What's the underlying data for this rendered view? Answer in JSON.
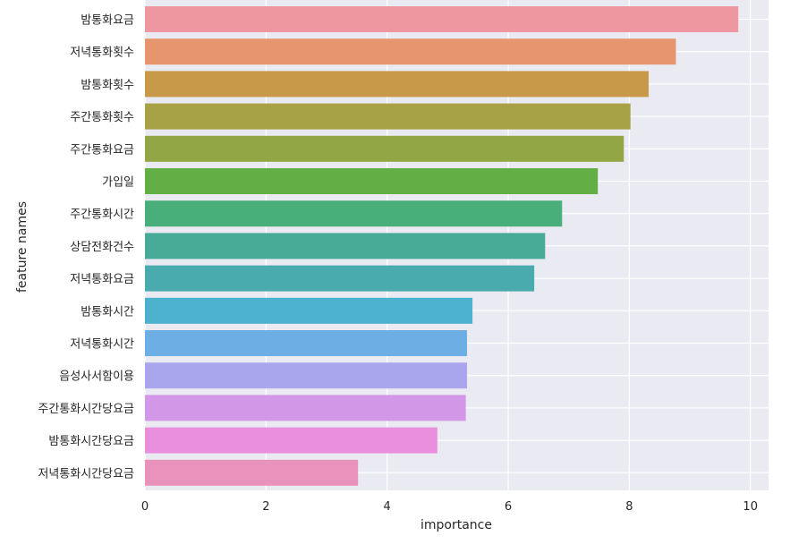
{
  "chart_data": {
    "type": "bar",
    "orientation": "horizontal",
    "xlabel": "importance",
    "ylabel": "feature names",
    "xlim": [
      0,
      10.3
    ],
    "xticks": [
      0,
      2,
      4,
      6,
      8,
      10
    ],
    "grid": true,
    "legend": "none",
    "background_color": "#eaeaf2",
    "categories": [
      "밤통화요금",
      "저녁통화횟수",
      "밤통화횟수",
      "주간통화횟수",
      "주간통화요금",
      "가입일",
      "주간통화시간",
      "상담전화건수",
      "저녁통화요금",
      "밤통화시간",
      "저녁통화시간",
      "음성사서함이용",
      "주간통화시간당요금",
      "밤통화시간당요금",
      "저녁통화시간당요금"
    ],
    "values": [
      9.8,
      8.77,
      8.32,
      8.02,
      7.91,
      7.48,
      6.89,
      6.61,
      6.43,
      5.41,
      5.32,
      5.32,
      5.3,
      4.83,
      3.52
    ],
    "colors": [
      "#ef97a1",
      "#e7956e",
      "#c9994a",
      "#a8a246",
      "#92a645",
      "#64ae46",
      "#48af7a",
      "#47ab98",
      "#4aabae",
      "#4cb1cd",
      "#6dafe4",
      "#a9a6ee",
      "#d397e8",
      "#e98fde",
      "#e992bc"
    ]
  }
}
